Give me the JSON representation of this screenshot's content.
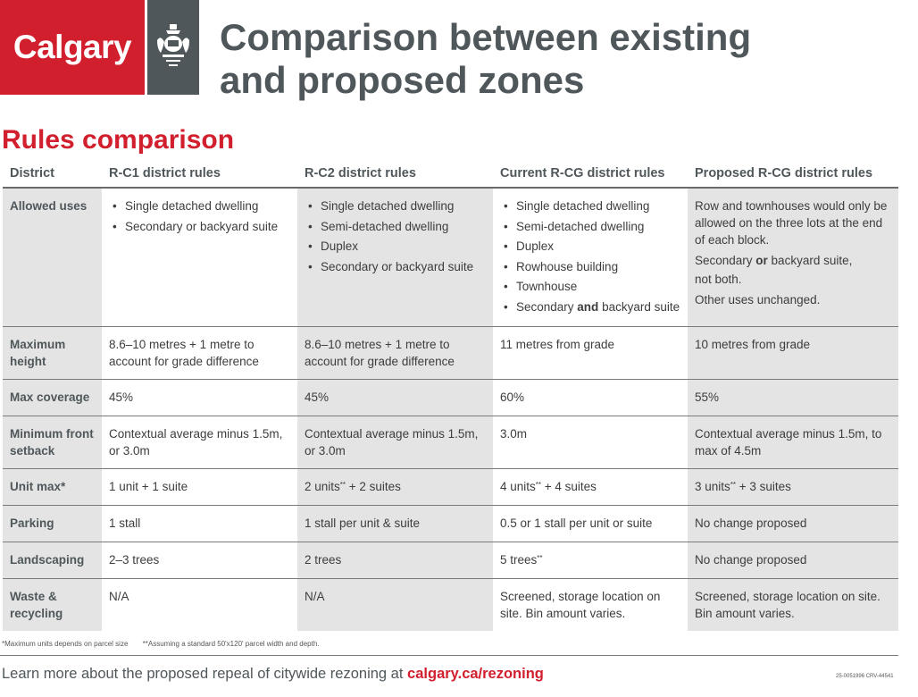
{
  "logo": {
    "text": "Calgary",
    "crest_icon": "calgary-crest-icon"
  },
  "title": {
    "line1": "Comparison between existing",
    "line2": "and proposed zones"
  },
  "section_title": "Rules comparison",
  "table": {
    "headers": [
      "District",
      "R-C1 district rules",
      "R-C2 district rules",
      "Current R-CG district rules",
      "Proposed R-CG district rules"
    ],
    "allowed_uses": {
      "label": "Allowed uses",
      "rc1": [
        "Single detached dwelling",
        "Secondary or backyard suite"
      ],
      "rc2": [
        "Single detached dwelling",
        "Semi-detached dwelling",
        "Duplex",
        "Secondary or backyard suite"
      ],
      "rcg_current": {
        "items": [
          "Single detached dwelling",
          "Semi-detached dwelling",
          "Duplex",
          "Rowhouse building",
          "Townhouse"
        ],
        "last_pre": "Secondary ",
        "last_bold": "and",
        "last_post": " backyard suite"
      },
      "rcg_proposed": {
        "p1": "Row and townhouses would only be allowed on the three lots at the end of each block.",
        "p2_pre": "Secondary ",
        "p2_bold": "or",
        "p2_post": " backyard suite,",
        "p3": "not both.",
        "p4": "Other uses unchanged."
      }
    },
    "max_height": {
      "label": "Maximum height",
      "rc1": "8.6–10 metres + 1 metre to account for grade difference",
      "rc2": "8.6–10 metres + 1 metre to account for grade difference",
      "rcg_current": "11 metres from grade",
      "rcg_proposed": "10 metres from grade"
    },
    "max_coverage": {
      "label": "Max coverage",
      "rc1": "45%",
      "rc2": "45%",
      "rcg_current": "60%",
      "rcg_proposed": "55%"
    },
    "min_front_setback": {
      "label": "Minimum front setback",
      "rc1": "Contextual average minus 1.5m, or 3.0m",
      "rc2": "Contextual average minus 1.5m, or 3.0m",
      "rcg_current": "3.0m",
      "rcg_proposed": "Contextual average minus 1.5m, to max of 4.5m"
    },
    "unit_max": {
      "label": "Unit max*",
      "rc1": "1 unit + 1 suite",
      "rc2_pre": "2 units",
      "rc2_post": " + 2 suites",
      "rcg_current_pre": "4 units",
      "rcg_current_post": " + 4 suites",
      "rcg_proposed_pre": "3 units",
      "rcg_proposed_post": " + 3 suites",
      "footmark": "**"
    },
    "parking": {
      "label": "Parking",
      "rc1": "1 stall",
      "rc2": "1 stall per unit & suite",
      "rcg_current": "0.5 or 1 stall per unit or suite",
      "rcg_proposed": "No change proposed"
    },
    "landscaping": {
      "label": "Landscaping",
      "rc1": "2–3 trees",
      "rc2": "2 trees",
      "rcg_current": "5 trees",
      "rcg_current_mark": "**",
      "rcg_proposed": "No change proposed"
    },
    "waste": {
      "label": "Waste & recycling",
      "rc1": "N/A",
      "rc2": "N/A",
      "rcg_current": "Screened, storage location on site. Bin amount varies.",
      "rcg_proposed": "Screened, storage location on site. Bin amount varies."
    }
  },
  "footnotes": [
    "*Maximum units depends on parcel size",
    "**Assuming a standard 50'x120' parcel width and depth."
  ],
  "footer": {
    "text": "Learn more about the proposed repeal of citywide rezoning at ",
    "link": "calgary.ca/rezoning"
  },
  "doc_code": "25-0051996 CRV-44541",
  "colors": {
    "brand_red": "#d21f2e",
    "dark_grey": "#4f575b",
    "shade": "#e4e4e4"
  }
}
